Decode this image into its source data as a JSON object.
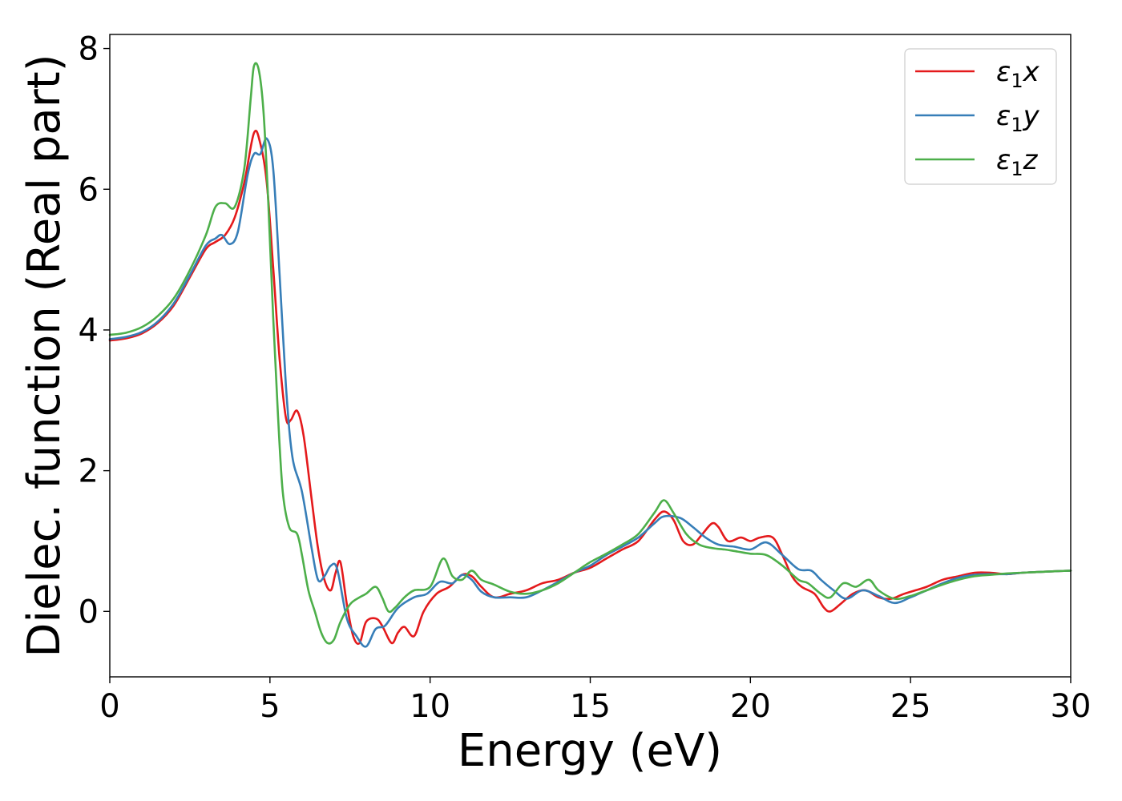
{
  "chart_data": {
    "type": "line",
    "xlabel": "Energy (eV)",
    "ylabel": "Dielec. function (Real part)",
    "xlim": [
      0,
      30
    ],
    "ylim": [
      -0.93,
      8.2
    ],
    "xticks": [
      0,
      5,
      10,
      15,
      20,
      25,
      30
    ],
    "yticks": [
      0,
      2,
      4,
      6,
      8
    ],
    "grid": false,
    "legend_position": "top-right",
    "series": [
      {
        "name": "ε1x",
        "legend": {
          "base": "ε",
          "sub": "1",
          "tail": "x"
        },
        "color": "#e41a1c",
        "points": [
          [
            0,
            3.85
          ],
          [
            0.5,
            3.88
          ],
          [
            1.0,
            3.95
          ],
          [
            1.5,
            4.1
          ],
          [
            2.0,
            4.35
          ],
          [
            2.5,
            4.75
          ],
          [
            3.0,
            5.15
          ],
          [
            3.3,
            5.25
          ],
          [
            3.6,
            5.35
          ],
          [
            3.9,
            5.6
          ],
          [
            4.2,
            6.1
          ],
          [
            4.5,
            6.8
          ],
          [
            4.7,
            6.65
          ],
          [
            4.9,
            6.1
          ],
          [
            5.1,
            4.9
          ],
          [
            5.3,
            3.6
          ],
          [
            5.5,
            2.75
          ],
          [
            5.65,
            2.72
          ],
          [
            5.85,
            2.85
          ],
          [
            6.05,
            2.5
          ],
          [
            6.3,
            1.6
          ],
          [
            6.5,
            0.9
          ],
          [
            6.7,
            0.45
          ],
          [
            6.9,
            0.3
          ],
          [
            7.05,
            0.55
          ],
          [
            7.2,
            0.7
          ],
          [
            7.4,
            0.1
          ],
          [
            7.6,
            -0.35
          ],
          [
            7.8,
            -0.45
          ],
          [
            8.0,
            -0.15
          ],
          [
            8.3,
            -0.1
          ],
          [
            8.5,
            -0.2
          ],
          [
            8.8,
            -0.45
          ],
          [
            9.0,
            -0.3
          ],
          [
            9.2,
            -0.22
          ],
          [
            9.5,
            -0.35
          ],
          [
            9.8,
            0.0
          ],
          [
            10.2,
            0.25
          ],
          [
            10.6,
            0.35
          ],
          [
            11.0,
            0.52
          ],
          [
            11.3,
            0.5
          ],
          [
            11.6,
            0.35
          ],
          [
            12.0,
            0.2
          ],
          [
            12.5,
            0.25
          ],
          [
            13.0,
            0.3
          ],
          [
            13.5,
            0.4
          ],
          [
            14.0,
            0.45
          ],
          [
            14.5,
            0.55
          ],
          [
            15.0,
            0.62
          ],
          [
            15.5,
            0.75
          ],
          [
            16.0,
            0.88
          ],
          [
            16.5,
            1.0
          ],
          [
            17.0,
            1.3
          ],
          [
            17.3,
            1.42
          ],
          [
            17.6,
            1.3
          ],
          [
            17.9,
            1.0
          ],
          [
            18.2,
            0.95
          ],
          [
            18.5,
            1.1
          ],
          [
            18.8,
            1.25
          ],
          [
            19.0,
            1.2
          ],
          [
            19.3,
            1.0
          ],
          [
            19.7,
            1.05
          ],
          [
            20.0,
            1.0
          ],
          [
            20.3,
            1.05
          ],
          [
            20.7,
            1.05
          ],
          [
            21.0,
            0.8
          ],
          [
            21.3,
            0.5
          ],
          [
            21.6,
            0.35
          ],
          [
            22.0,
            0.25
          ],
          [
            22.3,
            0.05
          ],
          [
            22.5,
            0.0
          ],
          [
            22.8,
            0.1
          ],
          [
            23.2,
            0.25
          ],
          [
            23.6,
            0.3
          ],
          [
            24.0,
            0.2
          ],
          [
            24.4,
            0.18
          ],
          [
            24.8,
            0.25
          ],
          [
            25.5,
            0.35
          ],
          [
            26.0,
            0.45
          ],
          [
            26.5,
            0.5
          ],
          [
            27.0,
            0.55
          ],
          [
            27.5,
            0.55
          ],
          [
            28.0,
            0.53
          ],
          [
            28.5,
            0.55
          ],
          [
            29.0,
            0.56
          ],
          [
            29.5,
            0.57
          ],
          [
            30.0,
            0.58
          ]
        ]
      },
      {
        "name": "ε1y",
        "legend": {
          "base": "ε",
          "sub": "1",
          "tail": "y"
        },
        "color": "#377eb8",
        "points": [
          [
            0,
            3.87
          ],
          [
            0.5,
            3.9
          ],
          [
            1.0,
            3.97
          ],
          [
            1.5,
            4.12
          ],
          [
            2.0,
            4.38
          ],
          [
            2.5,
            4.78
          ],
          [
            3.0,
            5.2
          ],
          [
            3.3,
            5.3
          ],
          [
            3.5,
            5.35
          ],
          [
            3.75,
            5.22
          ],
          [
            4.0,
            5.4
          ],
          [
            4.3,
            6.2
          ],
          [
            4.5,
            6.5
          ],
          [
            4.7,
            6.5
          ],
          [
            4.9,
            6.72
          ],
          [
            5.1,
            6.3
          ],
          [
            5.3,
            4.8
          ],
          [
            5.5,
            3.2
          ],
          [
            5.7,
            2.2
          ],
          [
            6.0,
            1.7
          ],
          [
            6.3,
            0.9
          ],
          [
            6.5,
            0.45
          ],
          [
            6.7,
            0.5
          ],
          [
            6.9,
            0.65
          ],
          [
            7.1,
            0.6
          ],
          [
            7.4,
            -0.1
          ],
          [
            7.7,
            -0.35
          ],
          [
            8.0,
            -0.5
          ],
          [
            8.3,
            -0.25
          ],
          [
            8.6,
            -0.2
          ],
          [
            9.0,
            0.05
          ],
          [
            9.5,
            0.2
          ],
          [
            9.9,
            0.25
          ],
          [
            10.3,
            0.42
          ],
          [
            10.7,
            0.4
          ],
          [
            11.0,
            0.52
          ],
          [
            11.3,
            0.45
          ],
          [
            11.6,
            0.28
          ],
          [
            12.0,
            0.2
          ],
          [
            12.5,
            0.2
          ],
          [
            13.0,
            0.2
          ],
          [
            13.5,
            0.3
          ],
          [
            14.0,
            0.42
          ],
          [
            14.5,
            0.55
          ],
          [
            15.0,
            0.65
          ],
          [
            15.5,
            0.8
          ],
          [
            16.0,
            0.92
          ],
          [
            16.5,
            1.05
          ],
          [
            17.0,
            1.25
          ],
          [
            17.3,
            1.35
          ],
          [
            17.8,
            1.33
          ],
          [
            18.2,
            1.2
          ],
          [
            18.6,
            1.05
          ],
          [
            19.0,
            0.95
          ],
          [
            19.5,
            0.92
          ],
          [
            20.0,
            0.88
          ],
          [
            20.5,
            0.98
          ],
          [
            21.0,
            0.8
          ],
          [
            21.5,
            0.6
          ],
          [
            21.9,
            0.58
          ],
          [
            22.2,
            0.45
          ],
          [
            22.6,
            0.3
          ],
          [
            23.0,
            0.18
          ],
          [
            23.5,
            0.3
          ],
          [
            24.0,
            0.22
          ],
          [
            24.5,
            0.12
          ],
          [
            25.0,
            0.2
          ],
          [
            25.5,
            0.3
          ],
          [
            26.0,
            0.4
          ],
          [
            26.5,
            0.48
          ],
          [
            27.0,
            0.52
          ],
          [
            27.5,
            0.53
          ],
          [
            28.0,
            0.53
          ],
          [
            28.5,
            0.55
          ],
          [
            29.0,
            0.56
          ],
          [
            29.5,
            0.57
          ],
          [
            30.0,
            0.58
          ]
        ]
      },
      {
        "name": "ε1z",
        "legend": {
          "base": "ε",
          "sub": "1",
          "tail": "z"
        },
        "color": "#4daf4a",
        "points": [
          [
            0,
            3.93
          ],
          [
            0.5,
            3.96
          ],
          [
            1.0,
            4.04
          ],
          [
            1.5,
            4.2
          ],
          [
            2.0,
            4.45
          ],
          [
            2.5,
            4.85
          ],
          [
            3.0,
            5.35
          ],
          [
            3.3,
            5.75
          ],
          [
            3.6,
            5.8
          ],
          [
            3.9,
            5.75
          ],
          [
            4.2,
            6.3
          ],
          [
            4.4,
            7.3
          ],
          [
            4.5,
            7.75
          ],
          [
            4.65,
            7.7
          ],
          [
            4.8,
            7.1
          ],
          [
            4.95,
            5.8
          ],
          [
            5.1,
            4.2
          ],
          [
            5.25,
            2.8
          ],
          [
            5.4,
            1.7
          ],
          [
            5.6,
            1.2
          ],
          [
            5.85,
            1.1
          ],
          [
            6.0,
            0.8
          ],
          [
            6.2,
            0.3
          ],
          [
            6.4,
            0.0
          ],
          [
            6.6,
            -0.3
          ],
          [
            6.8,
            -0.45
          ],
          [
            7.0,
            -0.4
          ],
          [
            7.2,
            -0.15
          ],
          [
            7.5,
            0.1
          ],
          [
            7.8,
            0.2
          ],
          [
            8.0,
            0.25
          ],
          [
            8.3,
            0.35
          ],
          [
            8.5,
            0.2
          ],
          [
            8.7,
            0.0
          ],
          [
            8.9,
            0.05
          ],
          [
            9.2,
            0.2
          ],
          [
            9.5,
            0.3
          ],
          [
            10.0,
            0.35
          ],
          [
            10.4,
            0.75
          ],
          [
            10.7,
            0.5
          ],
          [
            11.0,
            0.45
          ],
          [
            11.3,
            0.58
          ],
          [
            11.6,
            0.45
          ],
          [
            12.0,
            0.38
          ],
          [
            12.5,
            0.28
          ],
          [
            13.0,
            0.25
          ],
          [
            13.5,
            0.3
          ],
          [
            14.0,
            0.4
          ],
          [
            14.5,
            0.55
          ],
          [
            15.0,
            0.7
          ],
          [
            15.5,
            0.82
          ],
          [
            16.0,
            0.95
          ],
          [
            16.5,
            1.1
          ],
          [
            17.0,
            1.4
          ],
          [
            17.3,
            1.58
          ],
          [
            17.6,
            1.4
          ],
          [
            18.0,
            1.1
          ],
          [
            18.4,
            0.95
          ],
          [
            18.8,
            0.9
          ],
          [
            19.2,
            0.88
          ],
          [
            19.6,
            0.85
          ],
          [
            20.0,
            0.82
          ],
          [
            20.5,
            0.8
          ],
          [
            21.0,
            0.65
          ],
          [
            21.5,
            0.45
          ],
          [
            21.8,
            0.4
          ],
          [
            22.2,
            0.25
          ],
          [
            22.5,
            0.2
          ],
          [
            22.9,
            0.4
          ],
          [
            23.3,
            0.35
          ],
          [
            23.7,
            0.45
          ],
          [
            24.0,
            0.3
          ],
          [
            24.5,
            0.18
          ],
          [
            25.0,
            0.22
          ],
          [
            25.5,
            0.3
          ],
          [
            26.0,
            0.38
          ],
          [
            26.5,
            0.45
          ],
          [
            27.0,
            0.5
          ],
          [
            27.5,
            0.52
          ],
          [
            28.0,
            0.54
          ],
          [
            28.5,
            0.55
          ],
          [
            29.0,
            0.56
          ],
          [
            29.5,
            0.57
          ],
          [
            30.0,
            0.58
          ]
        ]
      }
    ]
  }
}
